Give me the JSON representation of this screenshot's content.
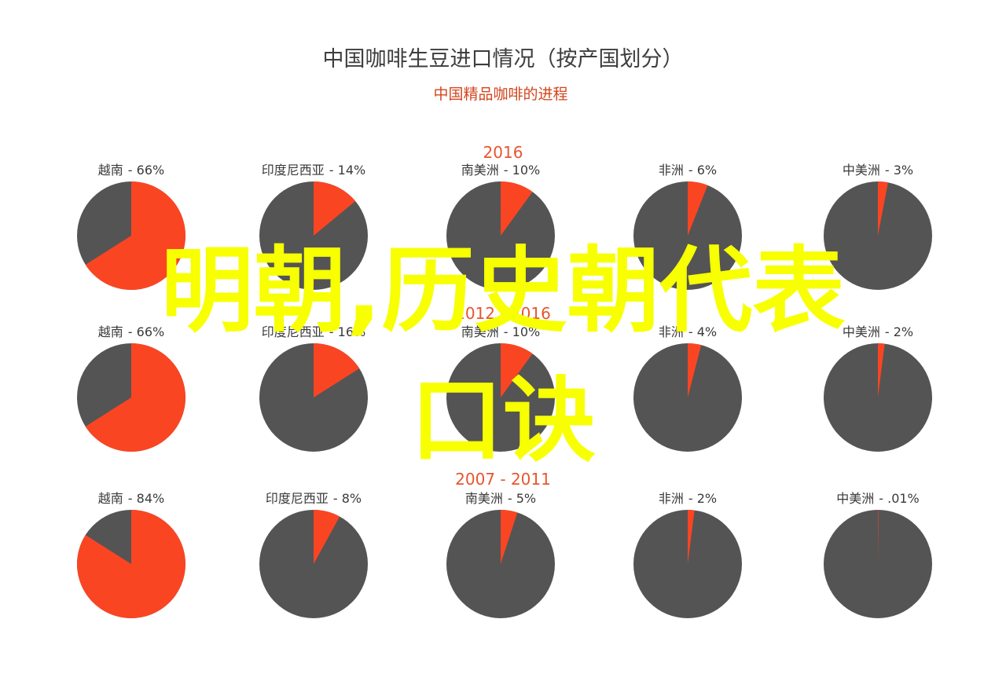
{
  "chart_data": {
    "type": "pie",
    "title": "中国咖啡生豆进口情况（按产国划分）",
    "subtitle": "中国精品咖啡的进程",
    "colors": {
      "share": "#fa4523",
      "rest": "#545454",
      "period_label": "#e7562f",
      "title": "#3d3d3d",
      "subtitle": "#d4451e",
      "label": "#3a3a3a"
    },
    "groups": [
      {
        "period": "2016",
        "slices": [
          {
            "country": "越南",
            "percent_label": "- 66%",
            "value": 66
          },
          {
            "country": "印度尼西亚",
            "percent_label": "- 14%",
            "value": 14
          },
          {
            "country": "南美洲",
            "percent_label": "- 10%",
            "value": 10
          },
          {
            "country": "非洲",
            "percent_label": "- 6%",
            "value": 6
          },
          {
            "country": "中美洲",
            "percent_label": "- 3%",
            "value": 3
          }
        ]
      },
      {
        "period": "2012 - 2016",
        "slices": [
          {
            "country": "越南",
            "percent_label": "- 66%",
            "value": 66
          },
          {
            "country": "印度尼西亚",
            "percent_label": "- 16%",
            "value": 16
          },
          {
            "country": "南美洲",
            "percent_label": "- 10%",
            "value": 10
          },
          {
            "country": "非洲",
            "percent_label": "- 4%",
            "value": 4
          },
          {
            "country": "中美洲",
            "percent_label": "- 2%",
            "value": 2
          }
        ]
      },
      {
        "period": "2007 - 2011",
        "slices": [
          {
            "country": "越南",
            "percent_label": "- 84%",
            "value": 84
          },
          {
            "country": "印度尼西亚",
            "percent_label": "- 8%",
            "value": 8
          },
          {
            "country": "南美洲",
            "percent_label": "- 5%",
            "value": 5
          },
          {
            "country": "非洲",
            "percent_label": "- 2%",
            "value": 2
          },
          {
            "country": "中美洲",
            "percent_label": "- .01%",
            "value": 0.01
          }
        ]
      }
    ]
  },
  "overlay": {
    "line1": "明朝,历史朝代表",
    "line2": "口诀",
    "color": "#f7ff00"
  }
}
